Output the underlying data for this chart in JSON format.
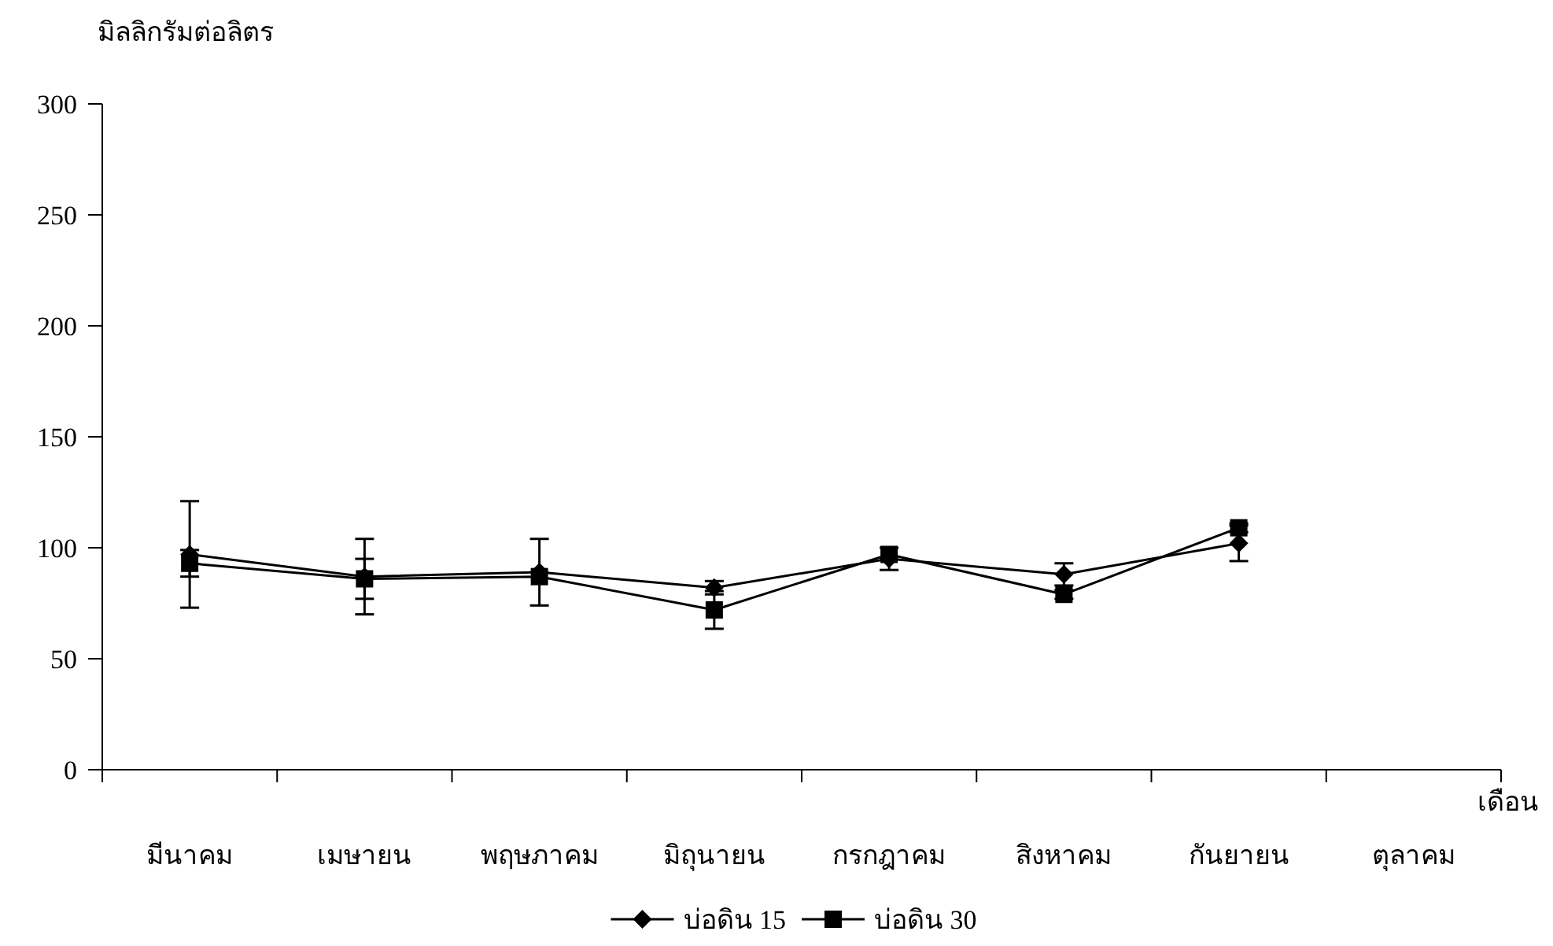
{
  "chart_data": {
    "type": "line",
    "ylabel": "มิลลิกรัมต่อลิตร",
    "xlabel": "เดือน",
    "categories": [
      "มีนาคม",
      "เมษายน",
      "พฤษภาคม",
      "มิถุนายน",
      "กรกฎาคม",
      "สิงหาคม",
      "กันยายน",
      "ตุลาคม"
    ],
    "series": [
      {
        "name": "บ่อดิน 15",
        "color": "#000000",
        "marker": "diamond",
        "values": [
          97,
          87,
          89,
          82,
          95,
          88,
          102,
          null
        ],
        "errors": [
          24,
          17,
          15,
          3,
          5,
          5,
          8,
          null
        ]
      },
      {
        "name": "บ่อดิน 30",
        "color": "#000000",
        "marker": "square",
        "values": [
          93,
          86,
          87,
          72,
          97,
          79,
          109,
          null
        ],
        "errors": [
          6,
          9,
          null,
          8.5,
          null,
          2,
          2,
          null
        ]
      }
    ],
    "ylim": [
      0,
      300
    ],
    "yticks": [
      0,
      50,
      100,
      150,
      200,
      250,
      300
    ],
    "grid": false,
    "legend": "bottom"
  }
}
